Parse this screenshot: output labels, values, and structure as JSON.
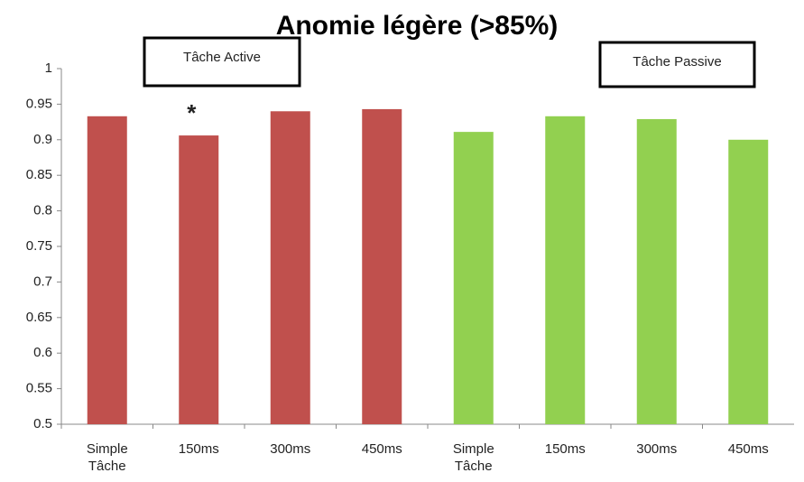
{
  "chart_data": {
    "type": "bar",
    "title": "Anomie légère (>85%)",
    "categories": [
      "Simple Tâche",
      "150ms",
      "300ms",
      "450ms",
      "Simple Tâche",
      "150ms",
      "300ms",
      "450ms"
    ],
    "values": [
      0.933,
      0.906,
      0.94,
      0.943,
      0.911,
      0.933,
      0.929,
      0.9
    ],
    "colors": [
      "#c0504d",
      "#c0504d",
      "#c0504d",
      "#c0504d",
      "#92d050",
      "#92d050",
      "#92d050",
      "#92d050"
    ],
    "ylim": [
      0.5,
      1
    ],
    "yticks": [
      0.5,
      0.55,
      0.6,
      0.65,
      0.7,
      0.75,
      0.8,
      0.85,
      0.9,
      0.95,
      1
    ],
    "grid": false,
    "annotations": [
      "Tâche Active",
      "Tâche Passive",
      "*"
    ]
  }
}
